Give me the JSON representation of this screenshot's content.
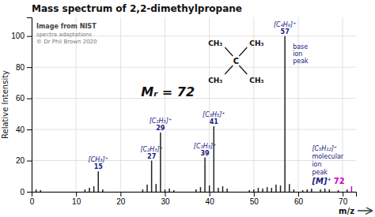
{
  "chart_data": {
    "type": "stem",
    "title": "Mass spectrum of 2,2-dimethylpropane",
    "y_label": "Relative Intensity",
    "x_label": "m/z",
    "x": [
      1,
      2,
      12,
      13,
      14,
      15,
      16,
      25,
      26,
      27,
      28,
      29,
      30,
      31,
      32,
      37,
      38,
      39,
      40,
      41,
      42,
      43,
      44,
      49,
      50,
      51,
      52,
      53,
      54,
      55,
      56,
      57,
      58,
      59,
      61,
      62,
      63,
      65,
      66,
      67,
      69,
      71,
      72
    ],
    "values": [
      1.5,
      1.0,
      1.5,
      2.5,
      3.5,
      13.0,
      1.5,
      1.5,
      4.5,
      20.0,
      5.0,
      38.0,
      1.5,
      2.0,
      1.0,
      1.5,
      3.0,
      22.0,
      4.0,
      42.0,
      2.5,
      3.5,
      2.0,
      1.0,
      1.5,
      2.5,
      2.0,
      3.0,
      2.5,
      4.5,
      4.0,
      100.0,
      5.0,
      1.5,
      1.0,
      1.5,
      2.0,
      1.5,
      2.0,
      1.5,
      1.0,
      1.5,
      3.5
    ],
    "colors": [
      "#222222",
      "#222222",
      "#222222",
      "#222222",
      "#222222",
      "#222222",
      "#222222",
      "#222222",
      "#222222",
      "#222222",
      "#222222",
      "#222222",
      "#222222",
      "#222222",
      "#222222",
      "#222222",
      "#222222",
      "#222222",
      "#222222",
      "#222222",
      "#222222",
      "#222222",
      "#222222",
      "#222222",
      "#222222",
      "#222222",
      "#222222",
      "#222222",
      "#222222",
      "#222222",
      "#222222",
      "#222222",
      "#222222",
      "#222222",
      "#222222",
      "#222222",
      "#222222",
      "#222222",
      "#222222",
      "#222222",
      "#222222",
      "#222222",
      "#cc00cc"
    ],
    "ion_labels": [
      null,
      null,
      null,
      null,
      null,
      "[CH₃]⁺",
      null,
      null,
      null,
      "[C₂H₃]⁺",
      null,
      "[C₂H₅]⁺",
      null,
      null,
      null,
      null,
      null,
      "[C₃H₃]⁺",
      null,
      "[C₃H₅]⁺",
      null,
      null,
      null,
      null,
      null,
      null,
      null,
      null,
      null,
      null,
      null,
      "[C₄H₉]⁺",
      null,
      null,
      null,
      null,
      null,
      null,
      null,
      null,
      null,
      null,
      null
    ],
    "xlim": [
      0,
      73
    ],
    "xticks": [
      0,
      10,
      20,
      30,
      40,
      50,
      60,
      70
    ],
    "ylim": [
      0,
      112
    ],
    "yticks": [
      0,
      20,
      40,
      60,
      80,
      100
    ],
    "grid": true,
    "annotations": [
      {
        "mz": 57,
        "text": [
          "base",
          "ion",
          "peak"
        ]
      },
      {
        "mz": 72,
        "text": [
          "[C₅H₁₂]⁺",
          "molecular",
          "ion",
          "peak"
        ],
        "symbol": "[M]⁺"
      }
    ],
    "credits": [
      "Image from NIST",
      "spectra adaptations",
      "© Dr Phil Brown 2020"
    ],
    "mr_label": "Mᵣ = 72",
    "structure": {
      "center": "C",
      "groups": [
        "CH₃",
        "CH₃",
        "CH₃",
        "CH₃"
      ]
    }
  }
}
